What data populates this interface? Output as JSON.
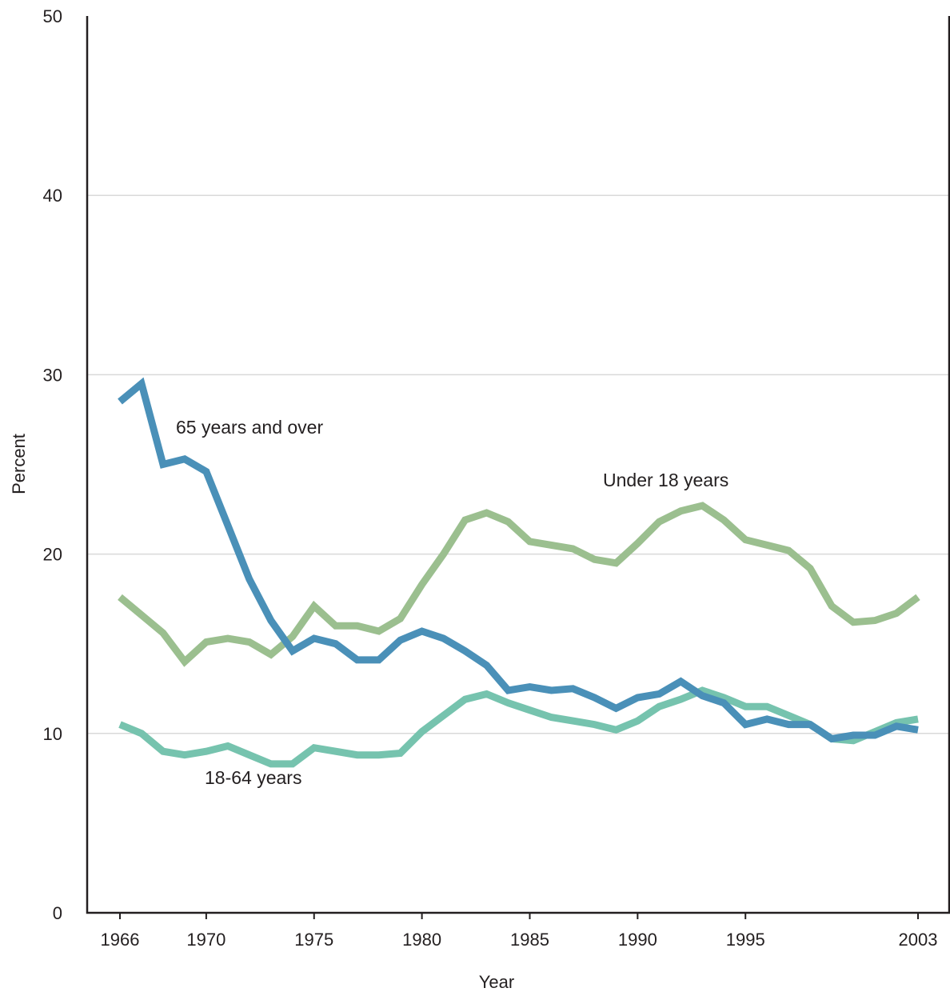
{
  "chart_data": {
    "type": "line",
    "title": "",
    "xlabel": "Year",
    "ylabel": "Percent",
    "xlim": [
      1966,
      2003
    ],
    "ylim": [
      0,
      50
    ],
    "yticks": [
      "0",
      "10",
      "20",
      "30",
      "40",
      "50"
    ],
    "xticks": [
      "1966",
      "1970",
      "1975",
      "1980",
      "1985",
      "1990",
      "1995",
      "2003"
    ],
    "xtick_values": [
      1966,
      1970,
      1975,
      1980,
      1985,
      1990,
      1995,
      2003
    ],
    "grid": true,
    "x": [
      1966,
      1967,
      1968,
      1969,
      1970,
      1971,
      1972,
      1973,
      1974,
      1975,
      1976,
      1977,
      1978,
      1979,
      1980,
      1981,
      1982,
      1983,
      1984,
      1985,
      1986,
      1987,
      1988,
      1989,
      1990,
      1991,
      1992,
      1993,
      1994,
      1995,
      1996,
      1997,
      1998,
      1999,
      2000,
      2001,
      2002,
      2003
    ],
    "series": [
      {
        "name": "65 years and over",
        "color": "#4a90b8",
        "values": [
          28.5,
          29.5,
          25.0,
          25.3,
          24.6,
          21.6,
          18.6,
          16.3,
          14.6,
          15.3,
          15.0,
          14.1,
          14.1,
          15.2,
          15.7,
          15.3,
          14.6,
          13.8,
          12.4,
          12.6,
          12.4,
          12.5,
          12.0,
          11.4,
          12.0,
          12.2,
          12.9,
          12.1,
          11.7,
          10.5,
          10.8,
          10.5,
          10.5,
          9.7,
          9.9,
          9.9,
          10.4,
          10.2
        ]
      },
      {
        "name": "Under 18 years",
        "color": "#9bbf8f",
        "values": [
          17.6,
          16.6,
          15.6,
          14.0,
          15.1,
          15.3,
          15.1,
          14.4,
          15.4,
          17.1,
          16.0,
          16.0,
          15.7,
          16.4,
          18.3,
          20.0,
          21.9,
          22.3,
          21.8,
          20.7,
          20.5,
          20.3,
          19.7,
          19.5,
          20.6,
          21.8,
          22.4,
          22.7,
          21.9,
          20.8,
          20.5,
          20.2,
          19.2,
          17.1,
          16.2,
          16.3,
          16.7,
          17.6
        ]
      },
      {
        "name": "18-64 years",
        "color": "#76c3ae",
        "values": [
          10.5,
          10.0,
          9.0,
          8.8,
          9.0,
          9.3,
          8.8,
          8.3,
          8.3,
          9.2,
          9.0,
          8.8,
          8.8,
          8.9,
          10.1,
          11.0,
          11.9,
          12.2,
          11.7,
          11.3,
          10.9,
          10.7,
          10.5,
          10.2,
          10.7,
          11.5,
          11.9,
          12.4,
          12.0,
          11.5,
          11.5,
          11.0,
          10.5,
          9.7,
          9.6,
          10.1,
          10.6,
          10.8
        ]
      }
    ]
  }
}
